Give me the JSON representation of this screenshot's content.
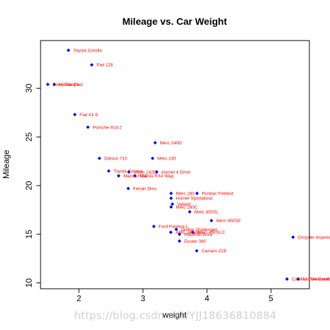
{
  "chart_data": {
    "type": "scatter",
    "title": "Mileage vs. Car Weight",
    "xlabel": "weight",
    "ylabel": "Mileage",
    "xlim": [
      1.4,
      5.6
    ],
    "ylim": [
      9.4,
      34.9
    ],
    "xticks": [
      2,
      3,
      4,
      5
    ],
    "yticks": [
      10,
      15,
      20,
      25,
      30
    ],
    "point_color": "#0000ff",
    "label_color": "#ff0000",
    "grid": false,
    "legend": "none",
    "points": [
      {
        "label": "Toyota Corolla",
        "x": 1.835,
        "y": 33.9
      },
      {
        "label": "Fiat 128",
        "x": 2.2,
        "y": 32.4
      },
      {
        "label": "Honda Civic",
        "x": 1.615,
        "y": 30.4
      },
      {
        "label": "Lotus Europa",
        "x": 1.513,
        "y": 30.4
      },
      {
        "label": "Fiat X1-9",
        "x": 1.935,
        "y": 27.3
      },
      {
        "label": "Porsche 914-2",
        "x": 2.14,
        "y": 26.0
      },
      {
        "label": "Merc 240D",
        "x": 3.19,
        "y": 24.4
      },
      {
        "label": "Datsun 710",
        "x": 2.32,
        "y": 22.8
      },
      {
        "label": "Merc 230",
        "x": 3.15,
        "y": 22.8
      },
      {
        "label": "Toyota Corona",
        "x": 2.465,
        "y": 21.5
      },
      {
        "label": "Hornet 4 Drive",
        "x": 3.215,
        "y": 21.4
      },
      {
        "label": "Volvo 142E",
        "x": 2.78,
        "y": 21.4
      },
      {
        "label": "Mazda RX4",
        "x": 2.62,
        "y": 21.0
      },
      {
        "label": "Mazda RX4 Wag",
        "x": 2.875,
        "y": 21.0
      },
      {
        "label": "Ferrari Dino",
        "x": 2.77,
        "y": 19.7
      },
      {
        "label": "Merc 280",
        "x": 3.44,
        "y": 19.2
      },
      {
        "label": "Pontiac Firebird",
        "x": 3.845,
        "y": 19.2
      },
      {
        "label": "Hornet Sportabout",
        "x": 3.44,
        "y": 18.7
      },
      {
        "label": "Valiant",
        "x": 3.46,
        "y": 18.1
      },
      {
        "label": "Merc 280C",
        "x": 3.44,
        "y": 17.8
      },
      {
        "label": "Merc 450SL",
        "x": 3.73,
        "y": 17.3
      },
      {
        "label": "Merc 450SE",
        "x": 4.07,
        "y": 16.4
      },
      {
        "label": "Ford Pantera L",
        "x": 3.17,
        "y": 15.8
      },
      {
        "label": "Dodge Challenger",
        "x": 3.52,
        "y": 15.5
      },
      {
        "label": "Merc 450SLC",
        "x": 3.78,
        "y": 15.2
      },
      {
        "label": "AMC Javelin",
        "x": 3.435,
        "y": 15.2
      },
      {
        "label": "Maserati Bora",
        "x": 3.57,
        "y": 15.0
      },
      {
        "label": "Chrysler Imperial",
        "x": 5.345,
        "y": 14.7
      },
      {
        "label": "Duster 360",
        "x": 3.57,
        "y": 14.3
      },
      {
        "label": "Camaro Z28",
        "x": 3.84,
        "y": 13.3
      },
      {
        "label": "Cadillac Fleetwood",
        "x": 5.25,
        "y": 10.4
      },
      {
        "label": "Lincoln Continental",
        "x": 5.424,
        "y": 10.4
      }
    ]
  },
  "watermark": "https://blog.csdn.net/YJJ18636810884"
}
